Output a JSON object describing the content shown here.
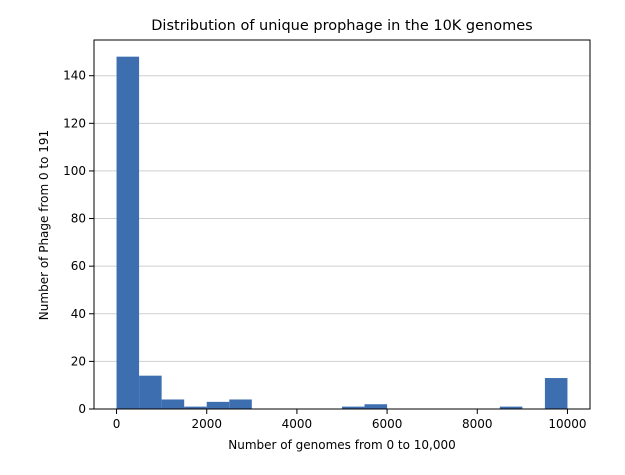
{
  "chart_data": {
    "type": "bar",
    "title": "Distribution of unique prophage in the 10K genomes",
    "xlabel": "Number of genomes from 0 to 10,000",
    "ylabel": "Number of Phage from 0 to 191",
    "xlim": [
      -500,
      10500
    ],
    "ylim": [
      0,
      155
    ],
    "xticks": [
      0,
      2000,
      4000,
      6000,
      8000,
      10000
    ],
    "xtick_labels": [
      "0",
      "2000",
      "4000",
      "6000",
      "8000",
      "10000"
    ],
    "yticks": [
      0,
      20,
      40,
      60,
      80,
      100,
      120,
      140
    ],
    "ytick_labels": [
      "0",
      "20",
      "40",
      "60",
      "80",
      "100",
      "120",
      "140"
    ],
    "grid": "y",
    "bar_color": "#3d6eb0",
    "bins": [
      {
        "x0": 0,
        "x1": 500,
        "value": 148
      },
      {
        "x0": 500,
        "x1": 1000,
        "value": 14
      },
      {
        "x0": 1000,
        "x1": 1500,
        "value": 4
      },
      {
        "x0": 1500,
        "x1": 2000,
        "value": 1
      },
      {
        "x0": 2000,
        "x1": 2500,
        "value": 3
      },
      {
        "x0": 2500,
        "x1": 3000,
        "value": 4
      },
      {
        "x0": 3000,
        "x1": 3500,
        "value": 0
      },
      {
        "x0": 3500,
        "x1": 4000,
        "value": 0
      },
      {
        "x0": 4000,
        "x1": 4500,
        "value": 0
      },
      {
        "x0": 4500,
        "x1": 5000,
        "value": 0
      },
      {
        "x0": 5000,
        "x1": 5500,
        "value": 1
      },
      {
        "x0": 5500,
        "x1": 6000,
        "value": 2
      },
      {
        "x0": 6000,
        "x1": 6500,
        "value": 0
      },
      {
        "x0": 6500,
        "x1": 7000,
        "value": 0
      },
      {
        "x0": 7000,
        "x1": 7500,
        "value": 0
      },
      {
        "x0": 7500,
        "x1": 8000,
        "value": 0
      },
      {
        "x0": 8000,
        "x1": 8500,
        "value": 0
      },
      {
        "x0": 8500,
        "x1": 9000,
        "value": 1
      },
      {
        "x0": 9000,
        "x1": 9500,
        "value": 0
      },
      {
        "x0": 9500,
        "x1": 10000,
        "value": 13
      }
    ]
  }
}
